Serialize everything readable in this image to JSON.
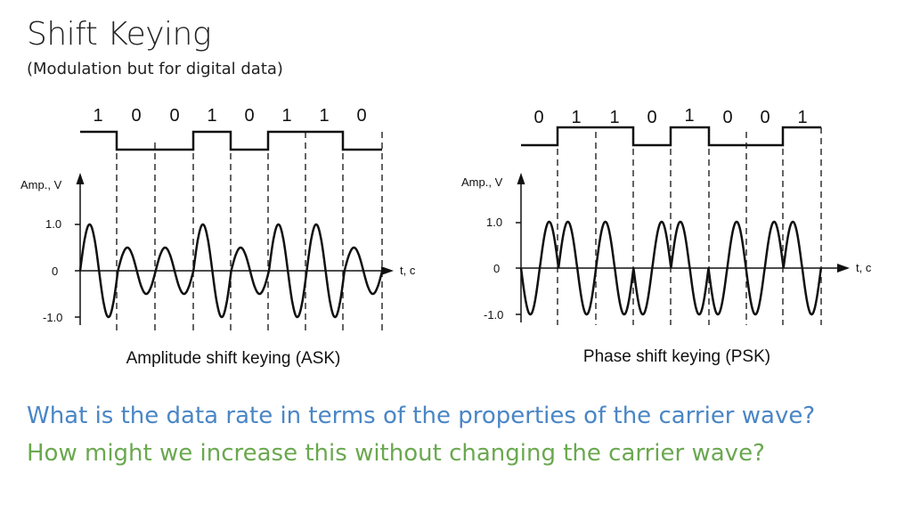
{
  "slide": {
    "title": "Shift Keying",
    "subtitle": "(Modulation but for digital data)",
    "question_1": "What is the data rate in terms of the properties of the carrier wave?",
    "question_2": "How might we increase this without changing the carrier wave?"
  },
  "colors": {
    "question_1": "#4a86c5",
    "question_2": "#6aa84f"
  },
  "ask": {
    "caption": "Amplitude shift keying (ASK)",
    "bits": [
      "1",
      "0",
      "0",
      "1",
      "0",
      "1",
      "1",
      "0"
    ],
    "y_axis_label": "Amp., V",
    "x_axis_label": "t, c",
    "ticks": [
      "1.0",
      "0",
      "-1.0"
    ]
  },
  "psk": {
    "caption": "Phase shift keying (PSK)",
    "bits": [
      "0",
      "1",
      "1",
      "0",
      "1",
      "0",
      "0",
      "1"
    ],
    "y_axis_label": "Amp., V",
    "x_axis_label": "t, c",
    "ticks": [
      "1.0",
      "0",
      "-1.0"
    ]
  }
}
